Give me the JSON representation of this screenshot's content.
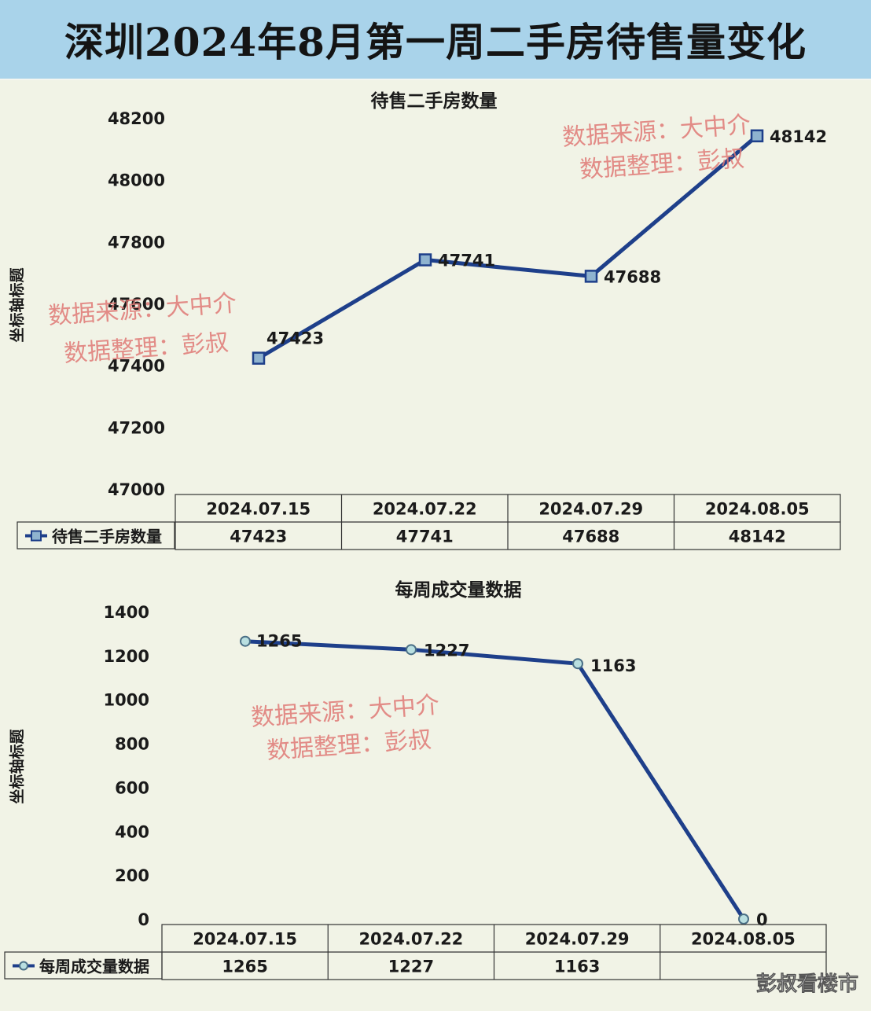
{
  "title": "深圳2024年8月第一周二手房待售量变化",
  "chart_data": [
    {
      "type": "line",
      "title": "待售二手房数量",
      "ylabel": "坐标轴标题",
      "categories": [
        "2024.07.15",
        "2024.07.22",
        "2024.07.29",
        "2024.08.05"
      ],
      "series": [
        {
          "name": "待售二手房数量",
          "values": [
            47423,
            47741,
            47688,
            48142
          ]
        }
      ],
      "ylim": [
        47000,
        48200
      ],
      "yticks": [
        47000,
        47200,
        47400,
        47600,
        47800,
        48000,
        48200
      ],
      "marker": "square",
      "color": "#1e3f8a",
      "data_table": true,
      "watermarks": [
        [
          "数据来源：大中介",
          "数据整理：彭叔"
        ],
        [
          "数据来源：大中介",
          "数据整理：彭叔"
        ]
      ]
    },
    {
      "type": "line",
      "title": "每周成交量数据",
      "ylabel": "坐标轴标题",
      "categories": [
        "2024.07.15",
        "2024.07.22",
        "2024.07.29",
        "2024.08.05"
      ],
      "series": [
        {
          "name": "每周成交量数据",
          "values": [
            1265,
            1227,
            1163,
            0
          ],
          "table_values": [
            "1265",
            "1227",
            "1163",
            ""
          ]
        }
      ],
      "ylim": [
        0,
        1400
      ],
      "yticks": [
        0,
        200,
        400,
        600,
        800,
        1000,
        1200,
        1400
      ],
      "marker": "circle",
      "color": "#1e3f8a",
      "data_table": true,
      "watermarks": [
        [
          "数据来源：大中介",
          "数据整理：彭叔"
        ]
      ]
    }
  ],
  "brand": "彭叔看楼市"
}
